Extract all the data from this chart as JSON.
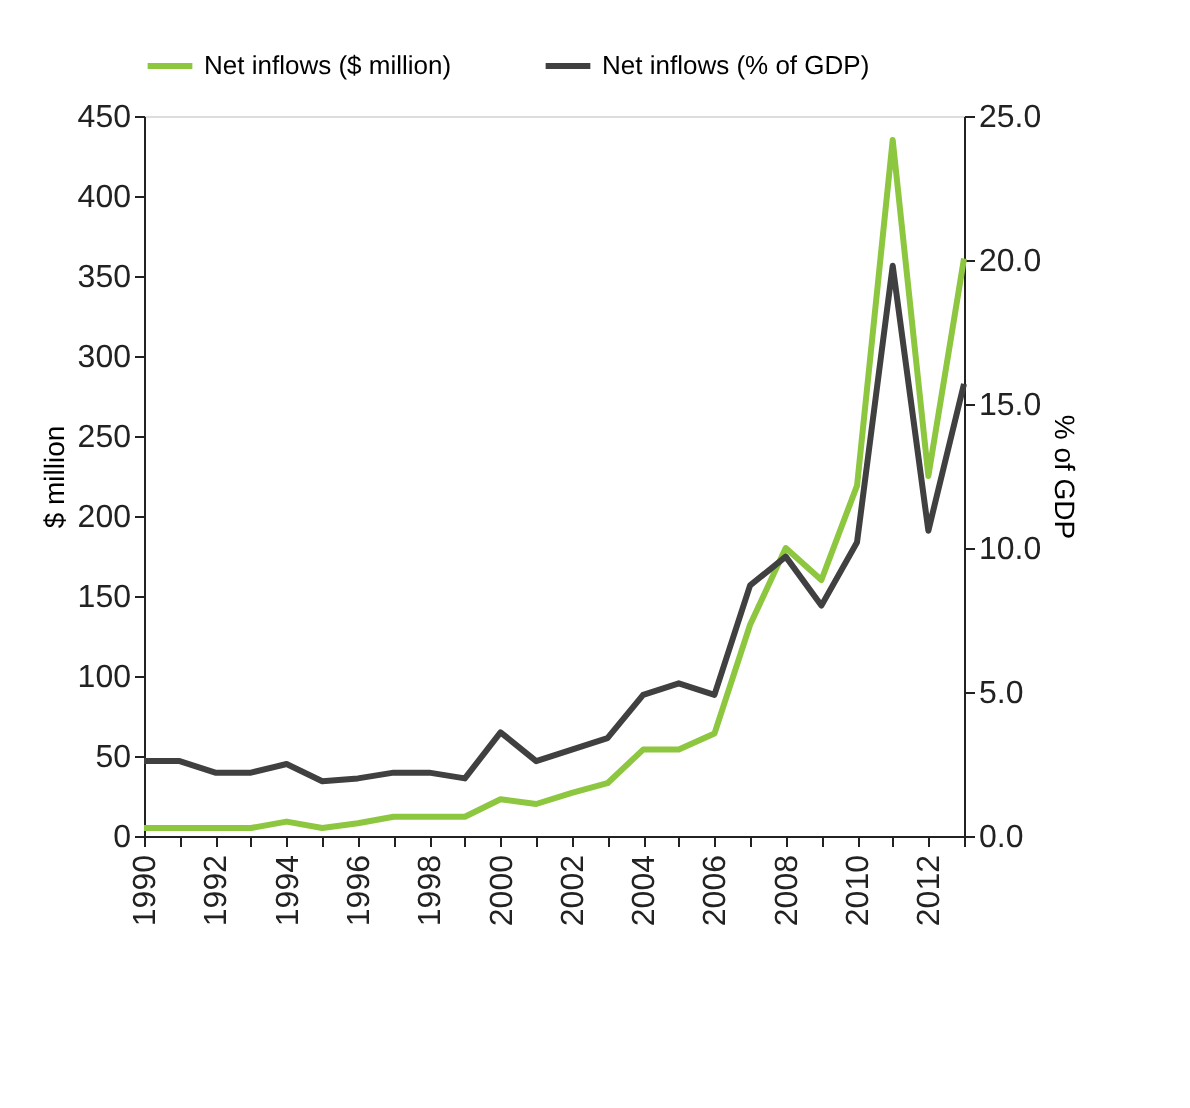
{
  "chart_data": {
    "type": "line",
    "xlabel": null,
    "ylabel": "$ million",
    "y2label": "% of GDP",
    "x": [
      1990,
      1991,
      1992,
      1993,
      1994,
      1995,
      1996,
      1997,
      1998,
      1999,
      2000,
      2001,
      2002,
      2003,
      2004,
      2005,
      2006,
      2007,
      2008,
      2009,
      2010,
      2011,
      2012,
      2013
    ],
    "series": [
      {
        "name": "Net inflows ($ million)",
        "color": "#8dc63f",
        "values": [
          5,
          5,
          5,
          5,
          9,
          5,
          8,
          12,
          12,
          12,
          23,
          20,
          27,
          33,
          54,
          54,
          64,
          132,
          180,
          160,
          219,
          435,
          225,
          361
        ]
      },
      {
        "name": "Net inflows (% of GDP)",
        "color": "#404040",
        "axis": "y2",
        "values": [
          2.6,
          2.6,
          2.2,
          2.2,
          2.5,
          1.9,
          2.0,
          2.2,
          2.2,
          2.0,
          3.6,
          2.6,
          3.0,
          3.4,
          4.9,
          5.3,
          4.9,
          8.7,
          9.7,
          8.0,
          10.2,
          19.8,
          10.6,
          15.7
        ]
      }
    ],
    "xlim": [
      1990,
      2013
    ],
    "xticks": [
      1990,
      {
        "value": 1991,
        "label": null
      },
      1992,
      {
        "value": 1993,
        "label": null
      },
      1994,
      {
        "value": 1995,
        "label": null
      },
      1996,
      {
        "value": 1997,
        "label": null
      },
      1998,
      {
        "value": 1999,
        "label": null
      },
      2000,
      {
        "value": 2001,
        "label": null
      },
      2002,
      {
        "value": 2003,
        "label": null
      },
      2004,
      {
        "value": 2005,
        "label": null
      },
      2006,
      {
        "value": 2007,
        "label": null
      },
      2008,
      {
        "value": 2009,
        "label": null
      },
      2010,
      {
        "value": 2011,
        "label": null
      },
      2012,
      {
        "value": 2013,
        "label": null
      }
    ],
    "ylim": [
      0,
      450
    ],
    "yticks": [
      0,
      50,
      100,
      150,
      200,
      250,
      300,
      350,
      400,
      450
    ],
    "y2lim": [
      0,
      25
    ],
    "y2ticks": [
      {
        "value": 0,
        "label": "0.0"
      },
      {
        "value": 5,
        "label": "5.0"
      },
      {
        "value": 10,
        "label": "10.0"
      },
      {
        "value": 15,
        "label": "15.0"
      },
      {
        "value": 20,
        "label": "20.0"
      },
      {
        "value": 25,
        "label": "25.0"
      }
    ],
    "legend": "top",
    "grid": false,
    "marker": "none",
    "line_style": "solid"
  }
}
